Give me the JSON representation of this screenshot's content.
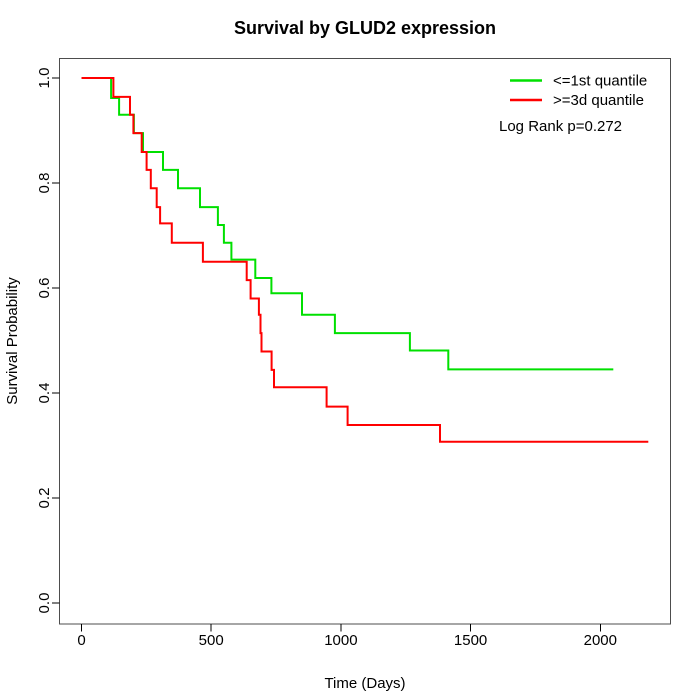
{
  "title": "Survival by GLUD2 expression",
  "legend": {
    "items": [
      {
        "label": "<=1st quantile",
        "color": "#00E000"
      },
      {
        "label": ">=3d quantile",
        "color": "#FF0000"
      }
    ],
    "p_value_text": "Log Rank p=0.272"
  },
  "axes": {
    "x": {
      "label": "Time (Days)",
      "ticks": [
        0,
        500,
        1000,
        1500,
        2000
      ]
    },
    "y": {
      "label": "Survival Probability",
      "ticks": [
        "0.0",
        "0.2",
        "0.4",
        "0.6",
        "0.8",
        "1.0"
      ]
    }
  },
  "chart_data": {
    "type": "line",
    "subtype": "kaplan-meier-step",
    "title": "Survival by GLUD2 expression",
    "xlabel": "Time (Days)",
    "ylabel": "Survival Probability",
    "xlim": [
      0,
      2273
    ],
    "ylim": [
      0,
      1
    ],
    "grid": false,
    "legend_position": "top-right-inside",
    "annotation": "Log Rank p=0.272",
    "series": [
      {
        "name": "<=1st quantile",
        "color": "#00E000",
        "points": [
          [
            0,
            1.0
          ],
          [
            114,
            0.962
          ],
          [
            145,
            0.93
          ],
          [
            202,
            0.895
          ],
          [
            237,
            0.859
          ],
          [
            314,
            0.825
          ],
          [
            372,
            0.79
          ],
          [
            457,
            0.754
          ],
          [
            526,
            0.72
          ],
          [
            549,
            0.686
          ],
          [
            578,
            0.654
          ],
          [
            670,
            0.619
          ],
          [
            732,
            0.59
          ],
          [
            850,
            0.549
          ],
          [
            977,
            0.514
          ],
          [
            1266,
            0.481
          ],
          [
            1414,
            0.445
          ],
          [
            2050,
            0.445
          ]
        ]
      },
      {
        "name": ">=3d quantile",
        "color": "#FF0000",
        "points": [
          [
            0,
            1.0
          ],
          [
            123,
            0.964
          ],
          [
            187,
            0.93
          ],
          [
            200,
            0.895
          ],
          [
            232,
            0.859
          ],
          [
            251,
            0.825
          ],
          [
            267,
            0.79
          ],
          [
            290,
            0.754
          ],
          [
            303,
            0.723
          ],
          [
            348,
            0.686
          ],
          [
            468,
            0.65
          ],
          [
            637,
            0.615
          ],
          [
            652,
            0.58
          ],
          [
            684,
            0.549
          ],
          [
            690,
            0.514
          ],
          [
            694,
            0.479
          ],
          [
            733,
            0.444
          ],
          [
            742,
            0.411
          ],
          [
            945,
            0.374
          ],
          [
            1026,
            0.339
          ],
          [
            1382,
            0.307
          ],
          [
            2185,
            0.307
          ]
        ]
      }
    ]
  }
}
